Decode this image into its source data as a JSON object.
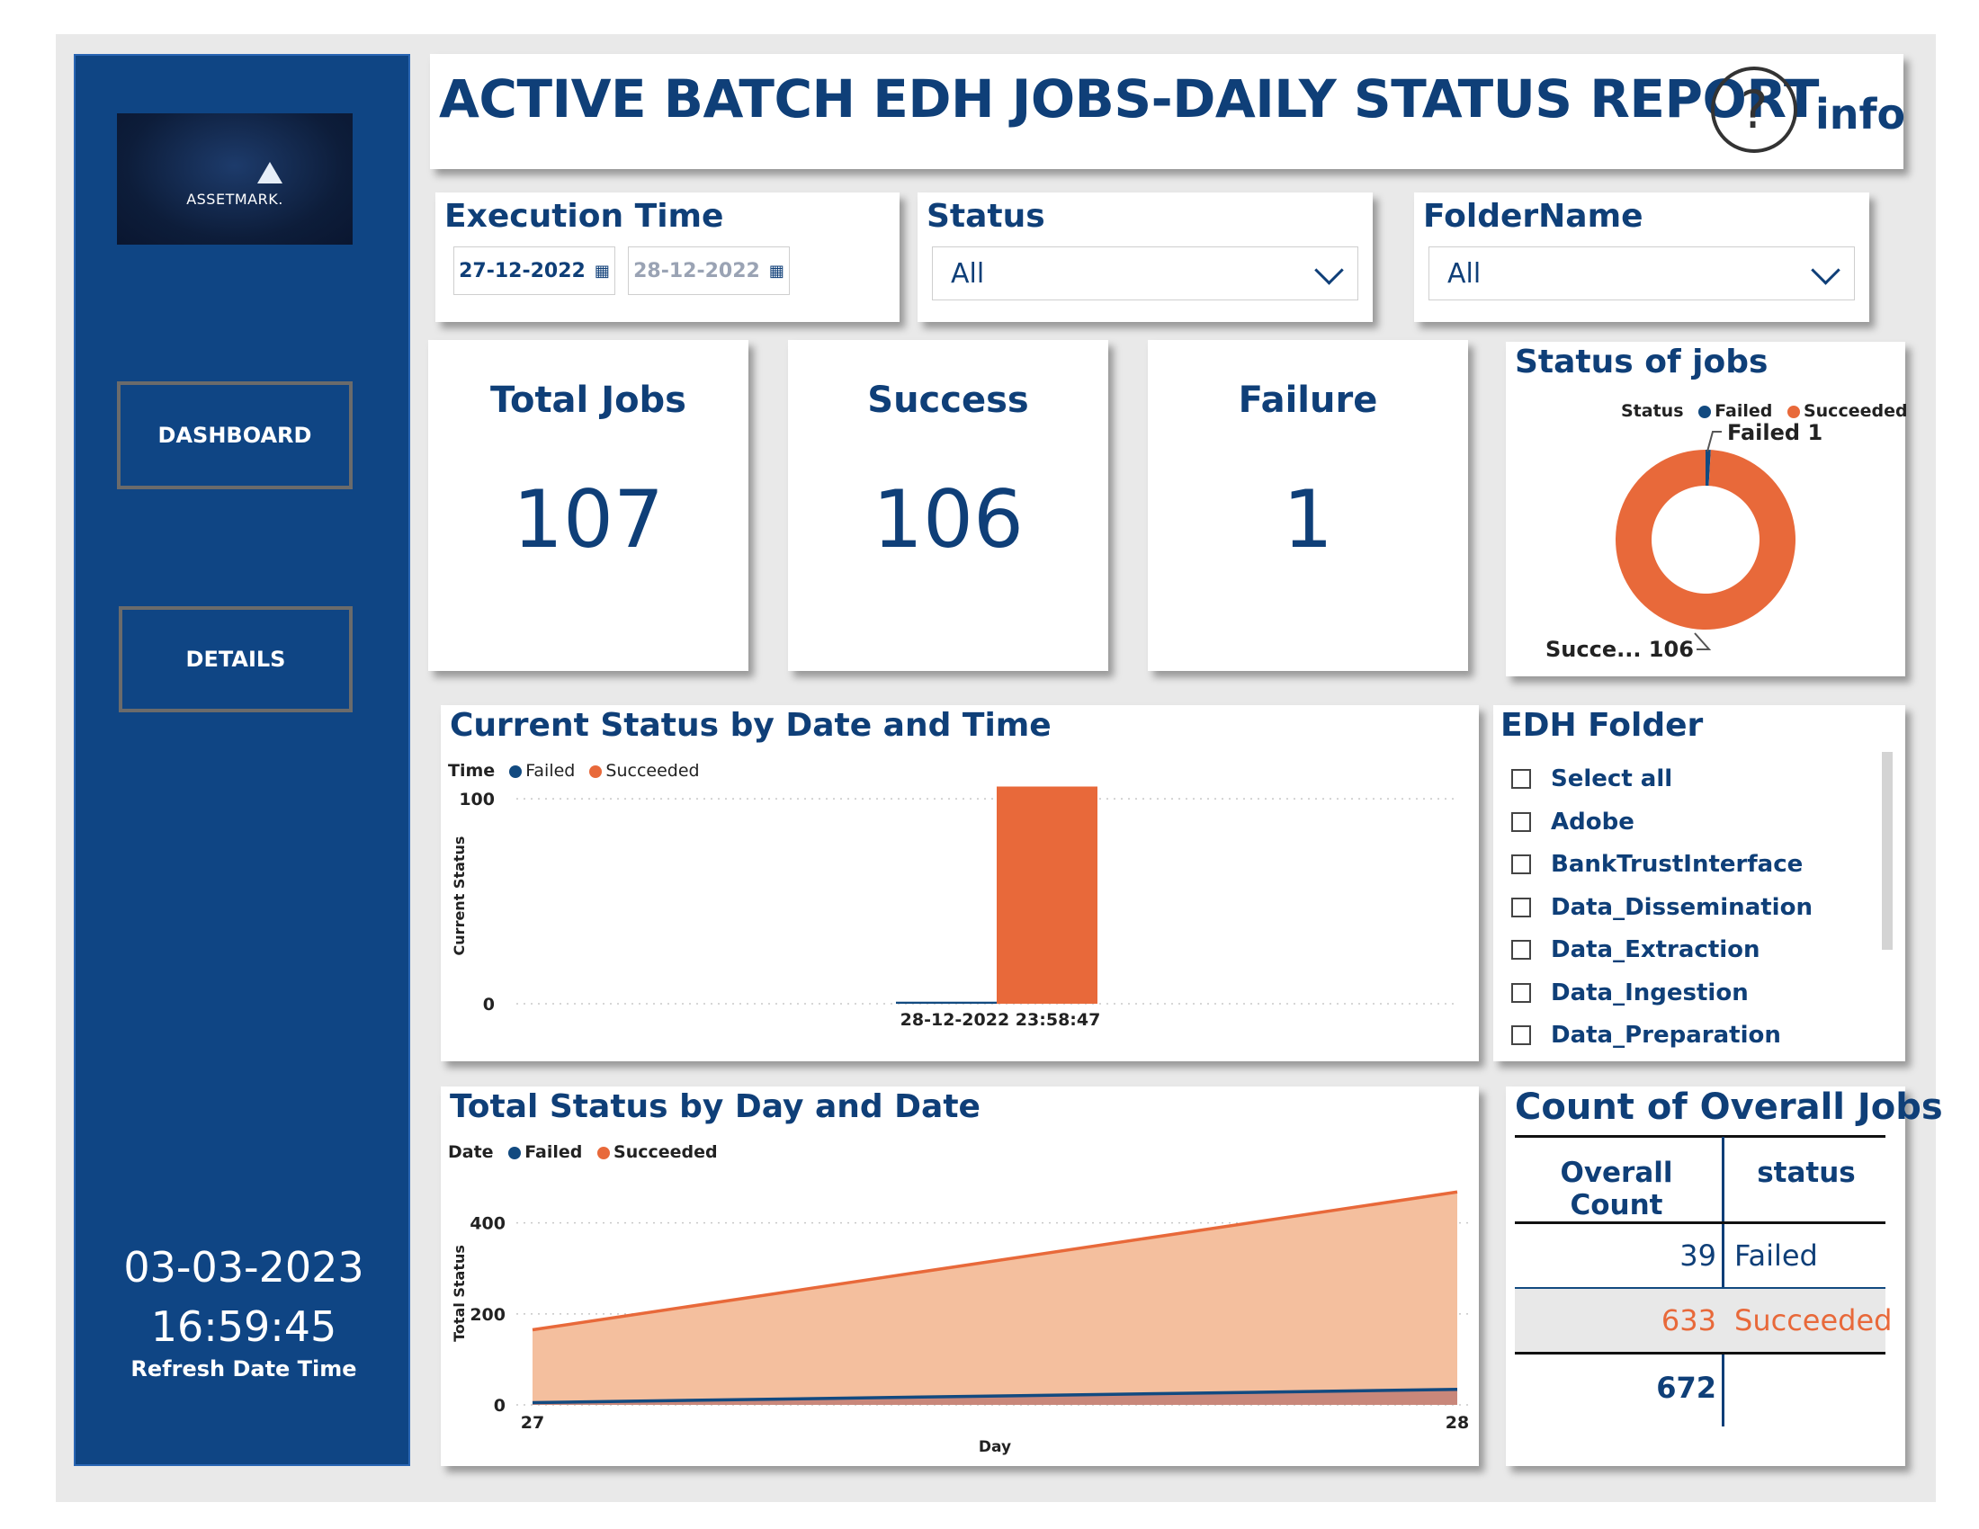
{
  "logo": {
    "text": "ASSETMARK."
  },
  "nav": {
    "dashboard_label": "DASHBOARD",
    "details_label": "DETAILS"
  },
  "refresh": {
    "date": "03-03-2023",
    "time": "16:59:45",
    "label": "Refresh Date Time"
  },
  "header": {
    "title": "ACTIVE BATCH EDH JOBS-DAILY STATUS REPORT",
    "help_glyph": "?",
    "info_label": "info"
  },
  "filters": {
    "execution_time": {
      "title": "Execution Time",
      "start": "27-12-2022",
      "end": "28-12-2022"
    },
    "status": {
      "title": "Status",
      "value": "All"
    },
    "folder_name": {
      "title": "FolderName",
      "value": "All"
    }
  },
  "kpis": {
    "total": {
      "title": "Total Jobs",
      "value": "107"
    },
    "success": {
      "title": "Success",
      "value": "106"
    },
    "failure": {
      "title": "Failure",
      "value": "1"
    }
  },
  "status_of_jobs": {
    "title": "Status of jobs",
    "legend_title": "Status",
    "failed_label": "Failed 1",
    "succeeded_label": "Succe... 106"
  },
  "current_status": {
    "title": "Current Status by Date and Time",
    "legend_title": "Time"
  },
  "total_status": {
    "title": "Total Status by Day and Date",
    "legend_title": "Date"
  },
  "edh_folder": {
    "title": "EDH Folder",
    "items": [
      "Select all",
      "Adobe",
      "BankTrustInterface",
      "Data_Dissemination",
      "Data_Extraction",
      "Data_Ingestion",
      "Data_Preparation"
    ]
  },
  "overall_jobs": {
    "title": "Count of Overall Jobs",
    "col_count": "Overall Count",
    "col_status": "status",
    "rows": [
      {
        "count": "39",
        "status": "Failed"
      },
      {
        "count": "633",
        "status": "Succeeded"
      }
    ],
    "total": "672"
  },
  "colors": {
    "navy": "#0f3f78",
    "failed": "#124a80",
    "succeeded": "#e8693a",
    "sidebar": "#0f4584"
  },
  "chart_data": [
    {
      "type": "pie",
      "title": "Status of jobs",
      "legend_title": "Status",
      "categories": [
        "Failed",
        "Succeeded"
      ],
      "values": [
        1,
        106
      ],
      "legend": "top-right"
    },
    {
      "type": "bar",
      "title": "Current Status by Date and Time",
      "legend_title": "Time",
      "xlabel": "",
      "ylabel": "Current Status",
      "categories": [
        "28-12-2022 23:58:47"
      ],
      "series": [
        {
          "name": "Failed",
          "values": [
            1
          ]
        },
        {
          "name": "Succeeded",
          "values": [
            106
          ]
        }
      ],
      "yticks": [
        0,
        100
      ],
      "ylim": [
        0,
        115
      ],
      "grid": true,
      "legend": "top-left"
    },
    {
      "type": "area",
      "title": "Total Status by Day and Date",
      "legend_title": "Date",
      "xlabel": "Day",
      "ylabel": "Total Status",
      "x": [
        27,
        28
      ],
      "series": [
        {
          "name": "Failed",
          "values": [
            5,
            34
          ]
        },
        {
          "name": "Succeeded",
          "values": [
            165,
            468
          ]
        }
      ],
      "yticks": [
        0,
        200,
        400
      ],
      "ylim": [
        0,
        510
      ],
      "grid": true,
      "legend": "top-left"
    }
  ]
}
